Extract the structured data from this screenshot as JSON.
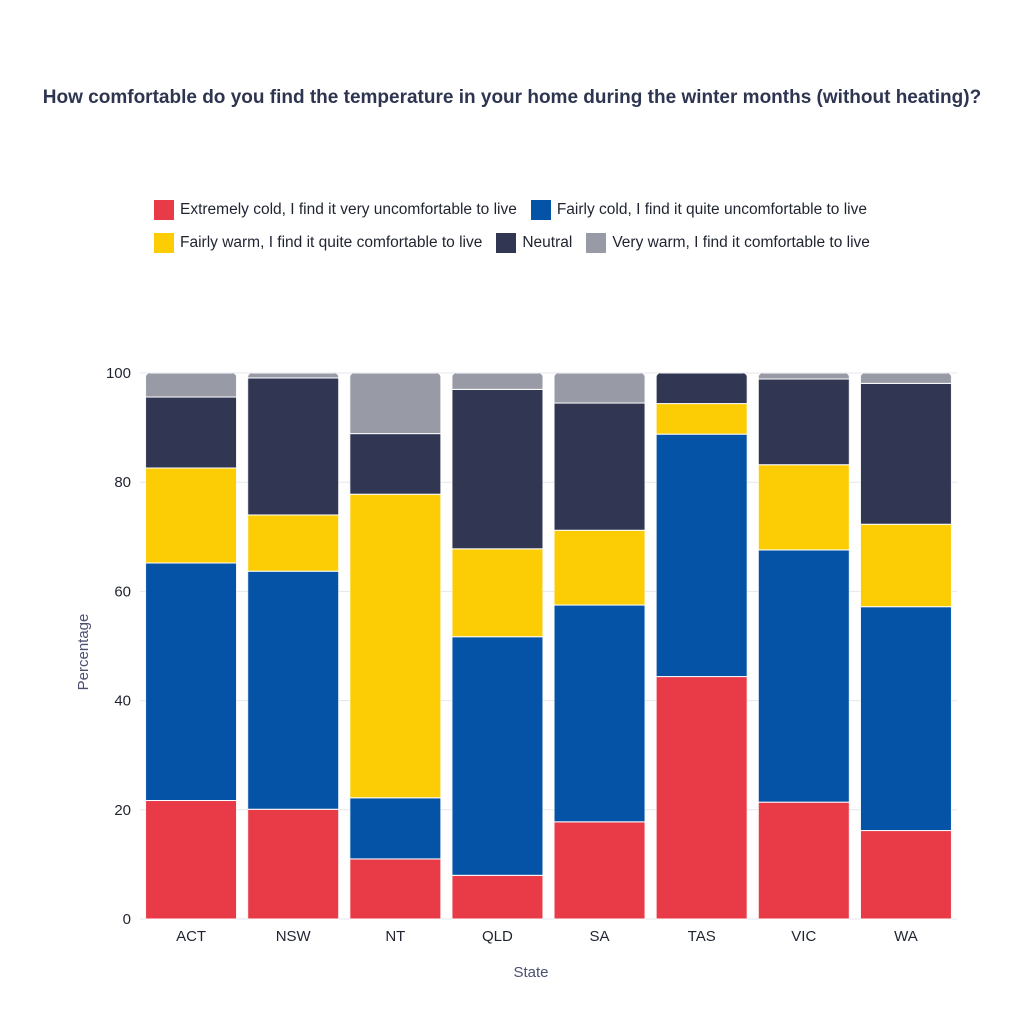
{
  "chart_data": {
    "type": "bar",
    "stacked": true,
    "title": "How comfortable do you find the temperature in your home during the winter months (without heating)?",
    "xlabel": "State",
    "ylabel": "Percentage",
    "ylim": [
      0,
      100
    ],
    "yticks": [
      0,
      20,
      40,
      60,
      80,
      100
    ],
    "grid": true,
    "legend_position": "top",
    "categories": [
      "ACT",
      "NSW",
      "NT",
      "QLD",
      "SA",
      "TAS",
      "VIC",
      "WA"
    ],
    "series": [
      {
        "name": "Extremely cold, I find it very uncomfortable to live",
        "color": "#e83a47",
        "values": [
          21.7,
          20.1,
          11.0,
          8.0,
          17.8,
          44.4,
          21.4,
          16.2
        ]
      },
      {
        "name": "Fairly cold, I find it quite uncomfortable to live",
        "color": "#0453a6",
        "values": [
          43.5,
          43.6,
          11.2,
          43.7,
          39.7,
          44.4,
          46.2,
          41.0
        ]
      },
      {
        "name": "Fairly warm, I find it quite comfortable to live",
        "color": "#fccc05",
        "values": [
          17.4,
          10.3,
          55.6,
          16.1,
          13.7,
          5.6,
          15.6,
          15.1
        ]
      },
      {
        "name": "Neutral",
        "color": "#313653",
        "values": [
          13.0,
          25.1,
          11.1,
          29.2,
          23.3,
          5.6,
          15.7,
          25.8
        ]
      },
      {
        "name": "Very warm, I find it comfortable to live",
        "color": "#989aa5",
        "values": [
          4.4,
          0.9,
          11.1,
          3.0,
          5.5,
          0.0,
          1.1,
          1.9
        ]
      }
    ]
  }
}
